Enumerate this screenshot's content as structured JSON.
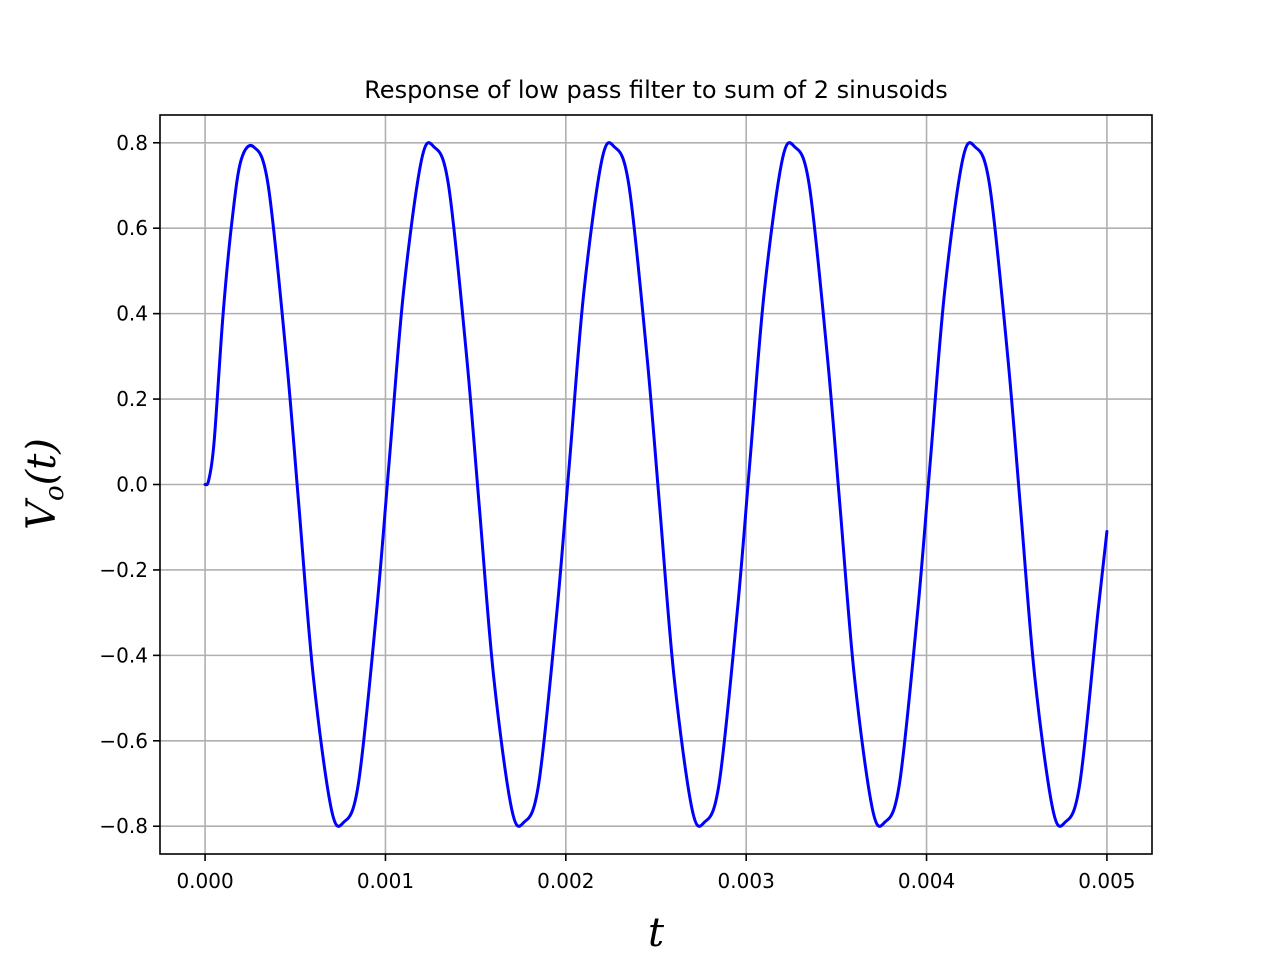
{
  "chart_data": {
    "type": "line",
    "title": "Response of low pass filter to sum of 2 sinusoids",
    "xlabel": "t",
    "ylabel": {
      "main": "V",
      "sub": "o",
      "arg": "(t)"
    },
    "xlim": [
      -0.00025,
      0.00525
    ],
    "ylim": [
      -0.865,
      0.865
    ],
    "xticks": [
      0.0,
      0.001,
      0.002,
      0.003,
      0.004,
      0.005
    ],
    "xtick_labels": [
      "0.000",
      "0.001",
      "0.002",
      "0.003",
      "0.004",
      "0.005"
    ],
    "yticks": [
      0.8,
      0.6,
      0.4,
      0.2,
      0.0,
      -0.2,
      -0.4,
      -0.6,
      -0.8
    ],
    "ytick_labels": [
      "0.8",
      "0.6",
      "0.4",
      "0.2",
      "0.0",
      "−0.2",
      "−0.4",
      "−0.6",
      "−0.8"
    ],
    "grid": true,
    "series": [
      {
        "color": "#0000ff",
        "x": [
          0.0,
          2e-05,
          5e-05,
          0.0001,
          0.00015,
          0.0002,
          0.00027,
          0.00035,
          0.00045,
          0.00052,
          0.0006,
          0.0007,
          0.00077,
          0.00085,
          0.00095,
          0.00102,
          0.0011,
          0.0012,
          0.00127,
          0.00135,
          0.00145,
          0.00152,
          0.0016,
          0.0017,
          0.00177,
          0.00185,
          0.00195,
          0.00202,
          0.0021,
          0.0022,
          0.00227,
          0.00235,
          0.00245,
          0.00252,
          0.0026,
          0.0027,
          0.00277,
          0.00285,
          0.00295,
          0.00302,
          0.0031,
          0.0032,
          0.00327,
          0.00335,
          0.00345,
          0.00352,
          0.0036,
          0.0037,
          0.00377,
          0.00385,
          0.00395,
          0.00402,
          0.0041,
          0.0042,
          0.00427,
          0.00435,
          0.00445,
          0.00452,
          0.0046,
          0.0047,
          0.00477,
          0.00485,
          0.00495,
          0.005
        ],
        "y": [
          0.0,
          0.01,
          0.1,
          0.4,
          0.62,
          0.76,
          0.79,
          0.7,
          0.3,
          -0.05,
          -0.45,
          -0.76,
          -0.79,
          -0.7,
          -0.3,
          0.05,
          0.45,
          0.76,
          0.79,
          0.7,
          0.3,
          -0.05,
          -0.45,
          -0.76,
          -0.79,
          -0.7,
          -0.3,
          0.05,
          0.45,
          0.76,
          0.79,
          0.7,
          0.3,
          -0.05,
          -0.45,
          -0.76,
          -0.79,
          -0.7,
          -0.3,
          0.05,
          0.45,
          0.76,
          0.79,
          0.7,
          0.3,
          -0.05,
          -0.45,
          -0.76,
          -0.79,
          -0.7,
          -0.3,
          0.05,
          0.45,
          0.76,
          0.79,
          0.7,
          0.3,
          -0.05,
          -0.45,
          -0.76,
          -0.79,
          -0.7,
          -0.3,
          -0.11
        ]
      }
    ]
  }
}
